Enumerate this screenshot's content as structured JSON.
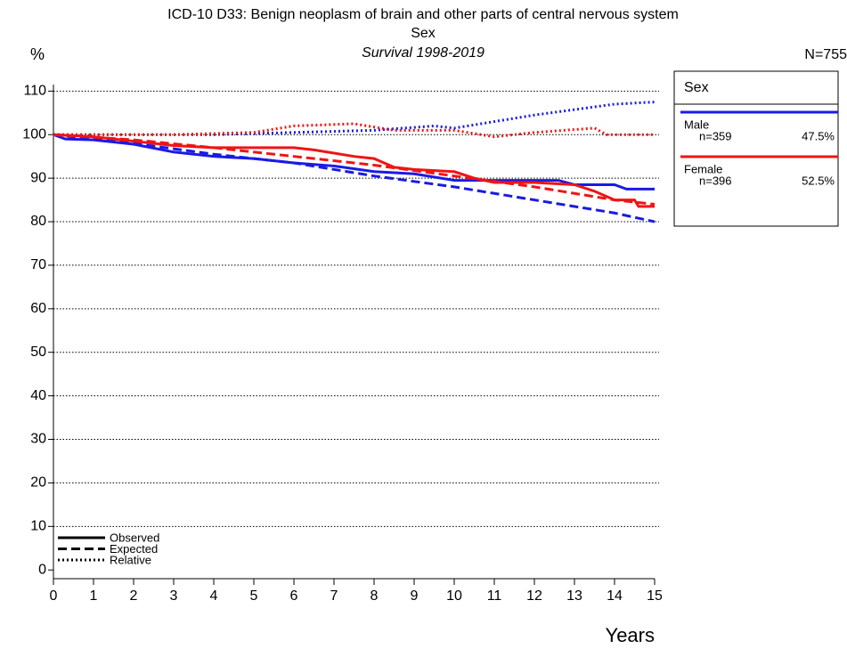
{
  "chart_data": {
    "type": "line",
    "title": "ICD-10 D33: Benign neoplasm of brain and other parts of central nervous system",
    "subtitle": "Sex",
    "subtitle2": "Survival 1998-2019",
    "y_label": "%",
    "x_label": "Years",
    "total": "N=755",
    "xlim": [
      0,
      15
    ],
    "ylim": [
      -2,
      111.5
    ],
    "xticks": [
      0,
      1,
      2,
      3,
      4,
      5,
      6,
      7,
      8,
      9,
      10,
      11,
      12,
      13,
      14,
      15
    ],
    "yticks": [
      0,
      10,
      20,
      30,
      40,
      50,
      60,
      70,
      80,
      90,
      100,
      110
    ],
    "grid": true,
    "legend": {
      "title": "Sex",
      "entries": [
        {
          "name": "Male",
          "n": "n=359",
          "share": "47.5%",
          "color": "#1a1ae6"
        },
        {
          "name": "Female",
          "n": "n=396",
          "share": "52.5%",
          "color": "#f01414"
        }
      ]
    },
    "line_styles": [
      {
        "name": "Observed",
        "dash": "solid"
      },
      {
        "name": "Expected",
        "dash": "dashed"
      },
      {
        "name": "Relative",
        "dash": "dotted"
      }
    ],
    "series": [
      {
        "group": "Male",
        "style": "Observed",
        "color": "#1a1ae6",
        "x": [
          0,
          0.3,
          1,
          2,
          3,
          4,
          5,
          6,
          7,
          8,
          9,
          10,
          11,
          12,
          12.6,
          13,
          14,
          14.3,
          15
        ],
        "values": [
          100,
          99,
          98.8,
          97.8,
          96,
          95,
          94.5,
          93.5,
          92.8,
          91.5,
          91,
          89.5,
          89.5,
          89.5,
          89.5,
          88.5,
          88.5,
          87.5,
          87.5
        ]
      },
      {
        "group": "Male",
        "style": "Expected",
        "color": "#1a1ae6",
        "x": [
          0,
          2,
          4,
          6,
          8,
          10,
          12,
          14,
          15
        ],
        "values": [
          100,
          98,
          95.5,
          93.5,
          90.5,
          88,
          85,
          82,
          80
        ]
      },
      {
        "group": "Male",
        "style": "Relative",
        "color": "#1a1ae6",
        "x": [
          0,
          2,
          4,
          6,
          8,
          9.5,
          10,
          12,
          14,
          15
        ],
        "values": [
          100,
          100,
          100,
          100.5,
          101,
          102,
          101.5,
          104.5,
          107,
          107.5
        ]
      },
      {
        "group": "Female",
        "style": "Observed",
        "color": "#f01414",
        "x": [
          0,
          1,
          2,
          3,
          4,
          5,
          6,
          6.5,
          7.5,
          8,
          8.5,
          9,
          10,
          10.5,
          11,
          12,
          13,
          13.5,
          14,
          14.5,
          14.6,
          15
        ],
        "values": [
          100,
          99.5,
          98.5,
          97.5,
          97,
          97,
          97,
          96.5,
          95,
          94.5,
          92.5,
          92,
          91.5,
          90,
          89,
          89,
          88.5,
          87,
          85,
          85,
          83.5,
          83.5
        ]
      },
      {
        "group": "Female",
        "style": "Expected",
        "color": "#f01414",
        "x": [
          0,
          2,
          4,
          6,
          8,
          10,
          12,
          14,
          15
        ],
        "values": [
          100,
          98.8,
          97,
          95,
          93,
          90.5,
          88,
          85,
          84
        ]
      },
      {
        "group": "Female",
        "style": "Relative",
        "color": "#f01414",
        "x": [
          0,
          3,
          5,
          6,
          7.5,
          8.5,
          10,
          11,
          12,
          13.5,
          13.8,
          15
        ],
        "values": [
          100,
          100,
          100.5,
          102,
          102.5,
          101,
          101,
          99.5,
          100.5,
          101.5,
          100,
          100
        ]
      }
    ]
  }
}
